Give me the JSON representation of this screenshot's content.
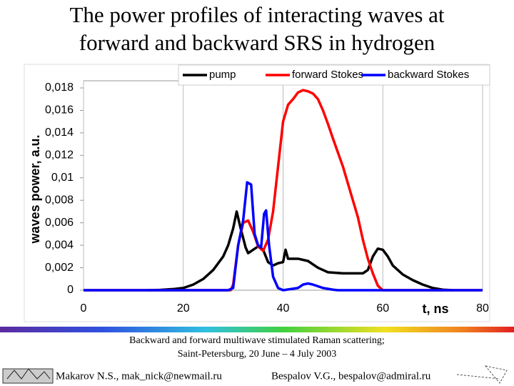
{
  "slide_title": [
    "The power profiles of interacting waves at",
    "forward and backward SRS in hydrogen"
  ],
  "footer": {
    "conference": [
      "Backward and forward multiwave stimulated Raman scattering;",
      "Saint-Petersburg, 20 June – 4 July 2003"
    ],
    "authors": [
      "Makarov N.S., mak_nick@newmail.ru",
      "Bespalov V.G., bespalov@admiral.ru"
    ]
  },
  "chart_data": {
    "type": "line",
    "xlabel": "t, ns",
    "ylabel": "waves power, a.u.",
    "xlim": [
      0,
      80
    ],
    "xticks": [
      0,
      20,
      40,
      60,
      80
    ],
    "ylim": [
      0,
      0.018
    ],
    "yticks": [
      0,
      {
        "value": 0.002,
        "label": "0,002"
      },
      {
        "value": 0.004,
        "label": "0,004"
      },
      {
        "value": 0.006,
        "label": "0,006"
      },
      {
        "value": 0.008,
        "label": "0,008"
      },
      {
        "value": 0.01,
        "label": "0,01"
      },
      {
        "value": 0.012,
        "label": "0,012"
      },
      {
        "value": 0.014,
        "label": "0,014"
      },
      {
        "value": 0.016,
        "label": "0,016"
      },
      {
        "value": 0.018,
        "label": "0,018"
      }
    ],
    "grid": "x",
    "legend": "top",
    "series": [
      {
        "name": "pump",
        "color": "#000000",
        "x": [
          13,
          15,
          18,
          20,
          22,
          24,
          26,
          28,
          29,
          30,
          30.7,
          31.5,
          32.5,
          33,
          34,
          35,
          36,
          37,
          38,
          39,
          40,
          40.5,
          41,
          43,
          45,
          47,
          49,
          52,
          55,
          56,
          57,
          58,
          59,
          60,
          61,
          62,
          64,
          66,
          68,
          70,
          72,
          74
        ],
        "values": [
          0,
          2e-05,
          0.0001,
          0.0002,
          0.0005,
          0.001,
          0.0018,
          0.003,
          0.004,
          0.0055,
          0.007,
          0.0055,
          0.0038,
          0.0033,
          0.0036,
          0.0039,
          0.0036,
          0.0025,
          0.0022,
          0.0024,
          0.0025,
          0.0036,
          0.0028,
          0.0028,
          0.0026,
          0.002,
          0.0016,
          0.0015,
          0.0015,
          0.0015,
          0.0018,
          0.003,
          0.0037,
          0.0036,
          0.003,
          0.0022,
          0.0014,
          0.0009,
          0.0005,
          0.0002,
          5e-05,
          0
        ]
      },
      {
        "name": "forward Stokes",
        "color": "#ff0000",
        "x": [
          0,
          29.5,
          30,
          31,
          32,
          33,
          34,
          35,
          36,
          37,
          38,
          39,
          40,
          41,
          42,
          43,
          44,
          45,
          46,
          47,
          48,
          49,
          50,
          52,
          54,
          55,
          56,
          57,
          58,
          59,
          60,
          80
        ],
        "values": [
          0,
          0,
          0.0005,
          0.004,
          0.006,
          0.0062,
          0.0052,
          0.0039,
          0.0035,
          0.0045,
          0.007,
          0.011,
          0.015,
          0.0165,
          0.017,
          0.0176,
          0.0178,
          0.0177,
          0.0175,
          0.017,
          0.016,
          0.0148,
          0.0135,
          0.011,
          0.008,
          0.0065,
          0.0045,
          0.0028,
          0.0015,
          0.0004,
          0,
          0
        ]
      },
      {
        "name": "backward Stokes",
        "color": "#0000ff",
        "x": [
          0,
          29,
          30,
          31,
          32,
          32.8,
          33.6,
          34.3,
          35,
          35.6,
          36.2,
          36.6,
          37.2,
          38,
          39,
          40,
          43,
          44,
          45,
          46,
          48,
          50,
          51,
          80
        ],
        "values": [
          0,
          0,
          0.0002,
          0.004,
          0.0062,
          0.0096,
          0.0094,
          0.005,
          0.004,
          0.0038,
          0.0068,
          0.0071,
          0.004,
          0.0012,
          0.0002,
          0,
          0.0002,
          0.0005,
          0.0006,
          0.0005,
          0.0002,
          5e-05,
          0,
          0
        ]
      }
    ]
  }
}
